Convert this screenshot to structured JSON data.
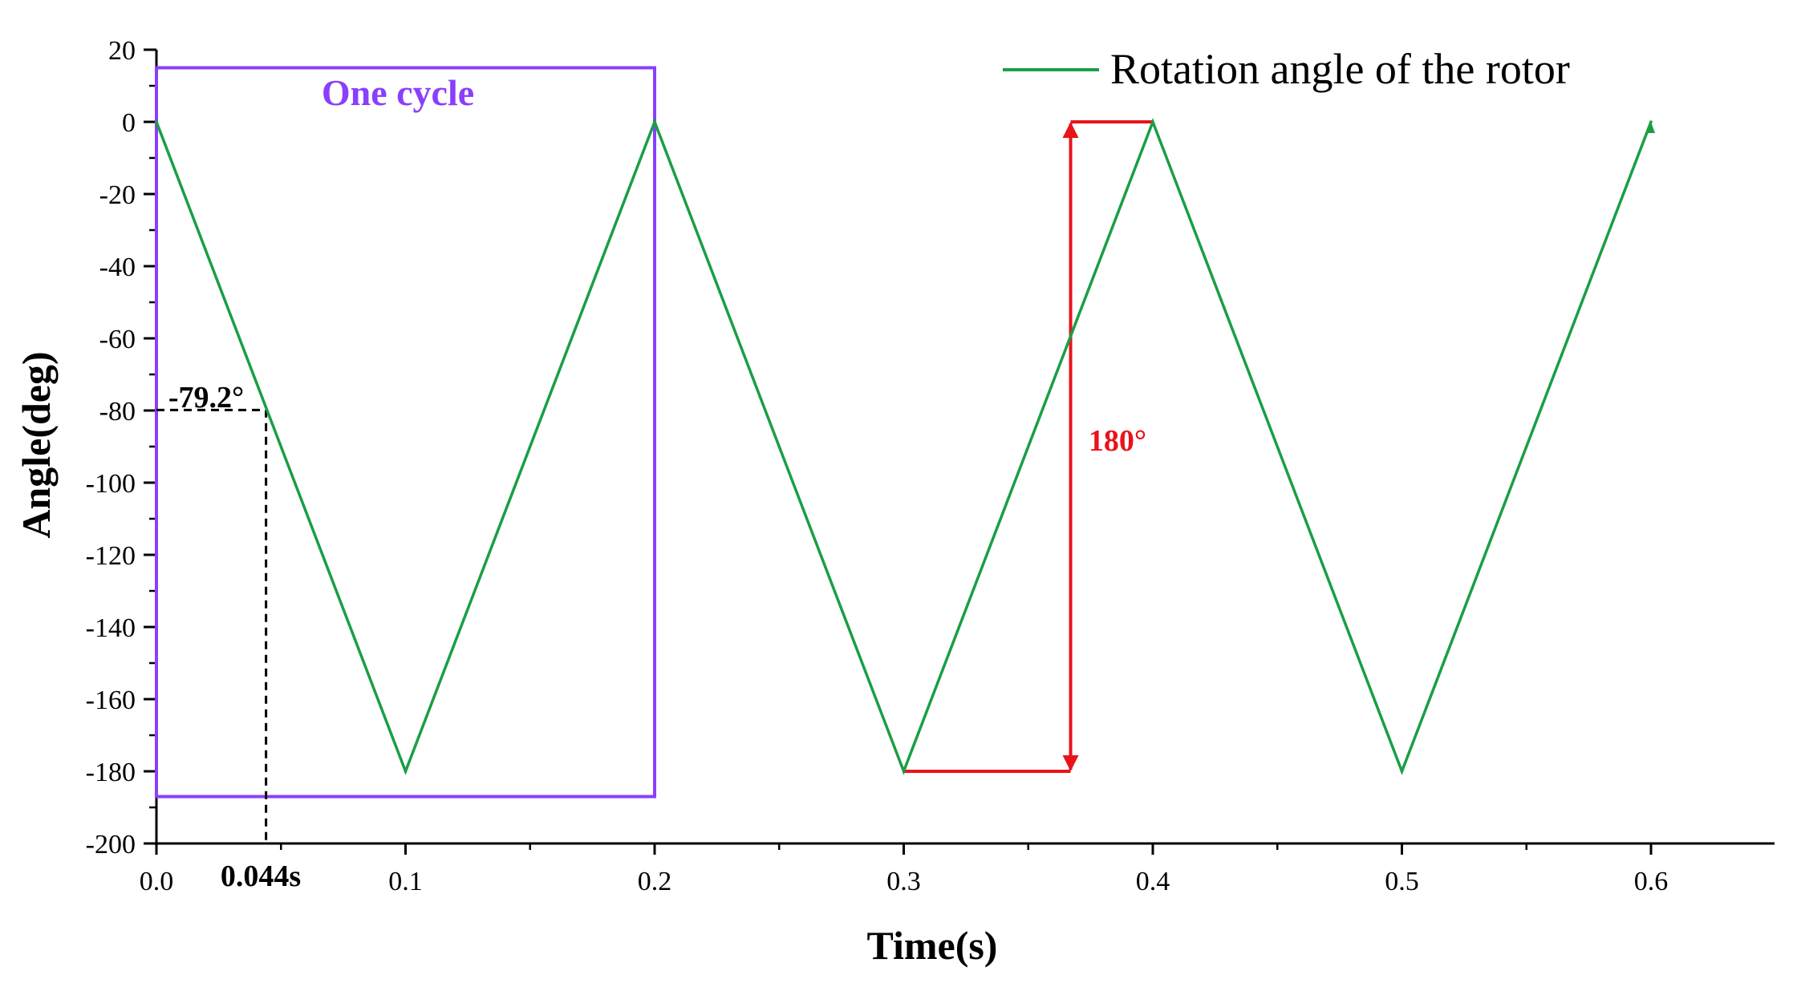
{
  "chart_data": {
    "type": "line",
    "title": "",
    "xlabel": "Time(s)",
    "ylabel": "Angle(deg)",
    "xlim": [
      0,
      0.65
    ],
    "ylim": [
      -200,
      20
    ],
    "x_ticks": [
      0.0,
      0.1,
      0.2,
      0.3,
      0.4,
      0.5,
      0.6
    ],
    "x_tick_labels": [
      "0.0",
      "0.1",
      "0.2",
      "0.3",
      "0.4",
      "0.5",
      "0.6"
    ],
    "y_ticks": [
      20,
      0,
      -20,
      -40,
      -60,
      -80,
      -100,
      -120,
      -140,
      -160,
      -180,
      -200
    ],
    "y_tick_labels": [
      "20",
      "0",
      "-20",
      "-40",
      "-60",
      "-80",
      "-100",
      "-120",
      "-140",
      "-160",
      "-180",
      "-200"
    ],
    "legend": {
      "position": "top-right",
      "entries": [
        "Rotation angle of the rotor"
      ]
    },
    "grid": false,
    "series": [
      {
        "name": "Rotation angle of the rotor",
        "color": "#1a9e46",
        "x": [
          0.0,
          0.1,
          0.2,
          0.3,
          0.4,
          0.5,
          0.6
        ],
        "y": [
          0,
          -180,
          0,
          -180,
          0,
          -180,
          0
        ]
      }
    ],
    "annotations": {
      "cycle": {
        "label": "One cycle",
        "color": "#8a3ffc",
        "x_range": [
          0.0,
          0.2
        ],
        "y_range": [
          -187,
          15
        ]
      },
      "point": {
        "x": 0.044,
        "y": -79.2,
        "x_label": "0.044s",
        "y_label": "-79.2°",
        "color": "#000000"
      },
      "amplitude": {
        "label": "180°",
        "color": "#e8141a",
        "x": 0.367,
        "y_low": -180,
        "y_high": 0,
        "from_x": 0.3,
        "to_x": 0.4
      }
    }
  }
}
